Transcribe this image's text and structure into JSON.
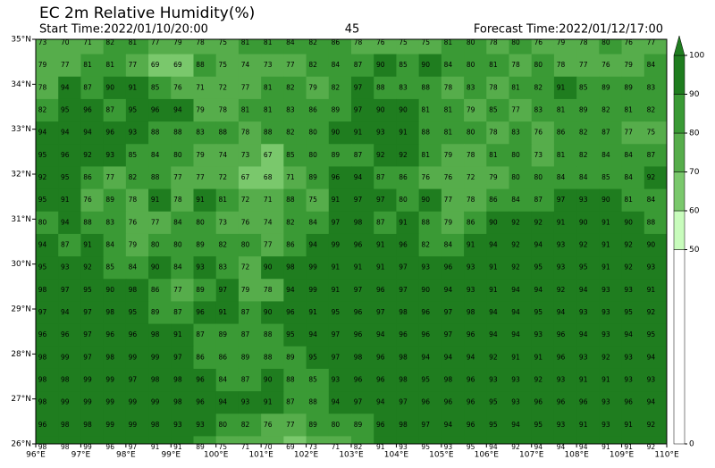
{
  "title": "EC 2m Relative Humidity(%)",
  "start_time": "Start Time:2022/01/10/20:00",
  "step": "45",
  "forecast_time": "Forecast Time:2022/01/12/17:00",
  "xlim": [
    96,
    110
  ],
  "ylim": [
    26,
    35
  ],
  "xticks": [
    {
      "value": 96,
      "label": "96°E"
    },
    {
      "value": 97,
      "label": "97°E"
    },
    {
      "value": 98,
      "label": "98°E"
    },
    {
      "value": 99,
      "label": "99°E"
    },
    {
      "value": 100,
      "label": "100°E"
    },
    {
      "value": 101,
      "label": "101°E"
    },
    {
      "value": 102,
      "label": "102°E"
    },
    {
      "value": 103,
      "label": "103°E"
    },
    {
      "value": 104,
      "label": "104°E"
    },
    {
      "value": 105,
      "label": "105°E"
    },
    {
      "value": 106,
      "label": "106°E"
    },
    {
      "value": 107,
      "label": "107°E"
    },
    {
      "value": 108,
      "label": "108°E"
    },
    {
      "value": 109,
      "label": "109°E"
    },
    {
      "value": 110,
      "label": "110°E"
    }
  ],
  "yticks": [
    {
      "value": 26,
      "label": "26°N"
    },
    {
      "value": 27,
      "label": "27°N"
    },
    {
      "value": 28,
      "label": "28°N"
    },
    {
      "value": 29,
      "label": "29°N"
    },
    {
      "value": 30,
      "label": "30°N"
    },
    {
      "value": 31,
      "label": "31°N"
    },
    {
      "value": 32,
      "label": "32°N"
    },
    {
      "value": 33,
      "label": "33°N"
    },
    {
      "value": 34,
      "label": "34°N"
    },
    {
      "value": 35,
      "label": "35°N"
    }
  ],
  "colorbar": {
    "levels": [
      0,
      50,
      60,
      70,
      80,
      90,
      100
    ],
    "colors": [
      "#ffffff",
      "#c8fcbc",
      "#7ac86c",
      "#56ad4b",
      "#3a9a35",
      "#1f7d1f"
    ]
  },
  "values": [
    [
      73,
      70,
      71,
      82,
      81,
      77,
      79,
      78,
      75,
      81,
      81,
      84,
      82,
      86,
      78,
      76,
      75,
      75,
      81,
      80,
      78,
      80,
      76,
      79,
      78,
      80,
      76,
      77
    ],
    [
      79,
      77,
      81,
      81,
      77,
      69,
      69,
      88,
      75,
      74,
      73,
      77,
      82,
      84,
      87,
      90,
      85,
      90,
      84,
      80,
      81,
      78,
      80,
      78,
      77,
      76,
      79,
      84
    ],
    [
      78,
      94,
      87,
      90,
      91,
      85,
      76,
      71,
      72,
      77,
      81,
      82,
      79,
      82,
      97,
      88,
      83,
      88,
      78,
      83,
      78,
      81,
      82,
      91,
      85,
      89,
      89,
      83
    ],
    [
      82,
      95,
      96,
      87,
      95,
      96,
      94,
      79,
      78,
      81,
      81,
      83,
      86,
      89,
      97,
      90,
      90,
      81,
      81,
      79,
      85,
      77,
      83,
      81,
      89,
      82,
      81,
      82
    ],
    [
      94,
      94,
      94,
      96,
      93,
      88,
      88,
      83,
      88,
      78,
      88,
      82,
      80,
      90,
      91,
      93,
      91,
      88,
      81,
      80,
      78,
      83,
      76,
      86,
      82,
      87,
      77,
      75
    ],
    [
      95,
      96,
      92,
      93,
      85,
      84,
      80,
      79,
      74,
      73,
      67,
      85,
      80,
      89,
      87,
      92,
      92,
      81,
      79,
      78,
      81,
      80,
      73,
      81,
      82,
      84,
      84,
      87
    ],
    [
      92,
      95,
      86,
      77,
      82,
      88,
      77,
      77,
      72,
      67,
      68,
      71,
      89,
      96,
      94,
      87,
      86,
      76,
      76,
      72,
      79,
      80,
      80,
      84,
      84,
      85,
      84,
      92
    ],
    [
      95,
      91,
      76,
      89,
      78,
      91,
      78,
      91,
      81,
      72,
      71,
      88,
      75,
      91,
      97,
      97,
      80,
      90,
      77,
      78,
      86,
      84,
      87,
      97,
      93,
      90,
      81,
      84
    ],
    [
      80,
      94,
      88,
      83,
      76,
      77,
      84,
      80,
      73,
      76,
      74,
      82,
      84,
      97,
      98,
      87,
      91,
      88,
      79,
      86,
      90,
      92,
      92,
      91,
      90,
      91,
      90,
      88
    ],
    [
      94,
      87,
      91,
      84,
      79,
      80,
      80,
      89,
      82,
      80,
      77,
      86,
      94,
      99,
      96,
      91,
      96,
      82,
      84,
      91,
      94,
      92,
      94,
      93,
      92,
      91,
      92,
      90
    ],
    [
      95,
      93,
      92,
      85,
      84,
      90,
      84,
      93,
      83,
      72,
      90,
      98,
      99,
      91,
      91,
      91,
      97,
      93,
      96,
      93,
      91,
      92,
      95,
      93,
      95,
      91,
      92,
      93
    ],
    [
      98,
      97,
      95,
      90,
      98,
      86,
      77,
      89,
      97,
      79,
      78,
      94,
      99,
      91,
      97,
      96,
      97,
      90,
      94,
      93,
      91,
      94,
      94,
      92,
      94,
      93,
      93,
      91
    ],
    [
      97,
      94,
      97,
      98,
      95,
      89,
      87,
      96,
      91,
      87,
      90,
      96,
      91,
      95,
      96,
      97,
      98,
      96,
      97,
      98,
      94,
      94,
      95,
      94,
      93,
      93,
      95,
      92
    ],
    [
      96,
      96,
      97,
      96,
      96,
      98,
      91,
      87,
      89,
      87,
      88,
      95,
      94,
      97,
      96,
      94,
      96,
      96,
      97,
      96,
      94,
      94,
      93,
      96,
      94,
      93,
      94,
      95
    ],
    [
      98,
      99,
      97,
      98,
      99,
      99,
      97,
      86,
      86,
      89,
      88,
      89,
      95,
      97,
      98,
      96,
      98,
      94,
      94,
      94,
      92,
      91,
      91,
      96,
      93,
      92,
      93,
      94
    ],
    [
      98,
      98,
      99,
      99,
      97,
      98,
      98,
      96,
      84,
      87,
      90,
      88,
      85,
      93,
      96,
      96,
      98,
      95,
      98,
      96,
      93,
      93,
      92,
      93,
      91,
      91,
      93,
      93
    ],
    [
      98,
      99,
      99,
      99,
      99,
      99,
      98,
      96,
      94,
      93,
      91,
      87,
      88,
      94,
      97,
      94,
      97,
      96,
      96,
      96,
      95,
      93,
      96,
      96,
      96,
      93,
      96,
      94
    ],
    [
      96,
      98,
      98,
      99,
      99,
      98,
      93,
      93,
      80,
      82,
      76,
      77,
      89,
      80,
      89,
      96,
      98,
      97,
      94,
      96,
      95,
      94,
      95,
      93,
      91,
      93,
      91,
      92
    ],
    [
      98,
      98,
      99,
      96,
      97,
      91,
      91,
      89,
      75,
      71,
      70,
      69,
      73,
      71,
      82,
      91,
      93,
      95,
      93,
      95,
      94,
      92,
      94,
      94,
      94,
      91,
      91,
      92
    ]
  ]
}
